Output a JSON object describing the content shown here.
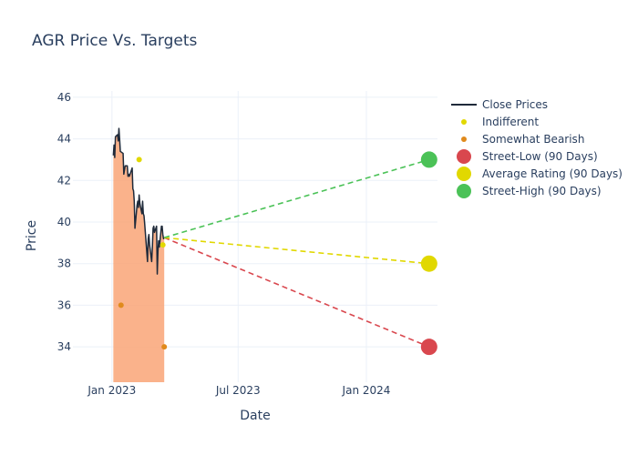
{
  "chart_data": {
    "type": "line",
    "title": "AGR Price Vs. Targets",
    "xlabel": "Date",
    "ylabel": "Price",
    "x_ticks": [
      {
        "label": "Jan 2023",
        "date": "2023-01-01"
      },
      {
        "label": "Jul 2023",
        "date": "2023-07-01"
      },
      {
        "label": "Jan 2024",
        "date": "2024-01-01"
      }
    ],
    "y_ticks": [
      34,
      36,
      38,
      40,
      42,
      44,
      46
    ],
    "xlim": [
      "2022-11-06",
      "2024-04-12"
    ],
    "ylim": [
      32.3,
      46.3
    ],
    "close_prices": {
      "name": "Close Prices",
      "color": "#1f2a3a",
      "fill_color": "#f9a577",
      "points": [
        [
          "2023-01-03",
          43.2
        ],
        [
          "2023-01-04",
          43.7
        ],
        [
          "2023-01-05",
          43.1
        ],
        [
          "2023-01-06",
          44.1
        ],
        [
          "2023-01-09",
          44.2
        ],
        [
          "2023-01-10",
          43.9
        ],
        [
          "2023-01-11",
          44.5
        ],
        [
          "2023-01-12",
          44.0
        ],
        [
          "2023-01-13",
          43.4
        ],
        [
          "2023-01-17",
          43.3
        ],
        [
          "2023-01-18",
          42.3
        ],
        [
          "2023-01-19",
          42.5
        ],
        [
          "2023-01-20",
          42.7
        ],
        [
          "2023-01-23",
          42.7
        ],
        [
          "2023-01-24",
          42.2
        ],
        [
          "2023-01-25",
          42.3
        ],
        [
          "2023-01-26",
          42.2
        ],
        [
          "2023-01-27",
          42.3
        ],
        [
          "2023-01-30",
          42.6
        ],
        [
          "2023-01-31",
          41.6
        ],
        [
          "2023-02-01",
          41.5
        ],
        [
          "2023-02-02",
          41.0
        ],
        [
          "2023-02-03",
          39.7
        ],
        [
          "2023-02-06",
          40.8
        ],
        [
          "2023-02-07",
          41.0
        ],
        [
          "2023-02-08",
          40.7
        ],
        [
          "2023-02-09",
          41.3
        ],
        [
          "2023-02-10",
          40.9
        ],
        [
          "2023-02-13",
          40.4
        ],
        [
          "2023-02-14",
          41.0
        ],
        [
          "2023-02-15",
          40.4
        ],
        [
          "2023-02-16",
          40.3
        ],
        [
          "2023-02-17",
          39.9
        ],
        [
          "2023-02-21",
          38.1
        ],
        [
          "2023-02-22",
          39.2
        ],
        [
          "2023-02-23",
          39.4
        ],
        [
          "2023-02-24",
          38.9
        ],
        [
          "2023-02-27",
          38.1
        ],
        [
          "2023-02-28",
          38.8
        ],
        [
          "2023-03-01",
          39.7
        ],
        [
          "2023-03-02",
          39.8
        ],
        [
          "2023-03-03",
          39.5
        ],
        [
          "2023-03-06",
          39.8
        ],
        [
          "2023-03-07",
          37.5
        ],
        [
          "2023-03-08",
          38.6
        ],
        [
          "2023-03-09",
          39.1
        ],
        [
          "2023-03-10",
          38.8
        ],
        [
          "2023-03-13",
          39.8
        ],
        [
          "2023-03-14",
          39.8
        ],
        [
          "2023-03-15",
          39.4
        ],
        [
          "2023-03-16",
          39.2
        ],
        [
          "2023-03-17",
          39.25
        ]
      ]
    },
    "ratings": [
      {
        "name": "Indifferent",
        "color": "#e1d800",
        "points": [
          [
            "2023-02-09",
            43.0
          ],
          [
            "2023-03-15",
            38.9
          ]
        ]
      },
      {
        "name": "Somewhat Bearish",
        "color": "#e08a1c",
        "points": [
          [
            "2023-01-14",
            36.0
          ],
          [
            "2023-03-17",
            34.0
          ]
        ]
      }
    ],
    "targets": {
      "start": [
        "2023-03-17",
        39.25
      ],
      "end_date": "2024-03-31",
      "lines": [
        {
          "name": "Street-Low (90 Days)",
          "value": 34.0,
          "color": "#d9474e"
        },
        {
          "name": "Average Rating (90 Days)",
          "value": 38.0,
          "color": "#e1d800"
        },
        {
          "name": "Street-High (90 Days)",
          "value": 43.0,
          "color": "#4bc257"
        }
      ]
    }
  }
}
